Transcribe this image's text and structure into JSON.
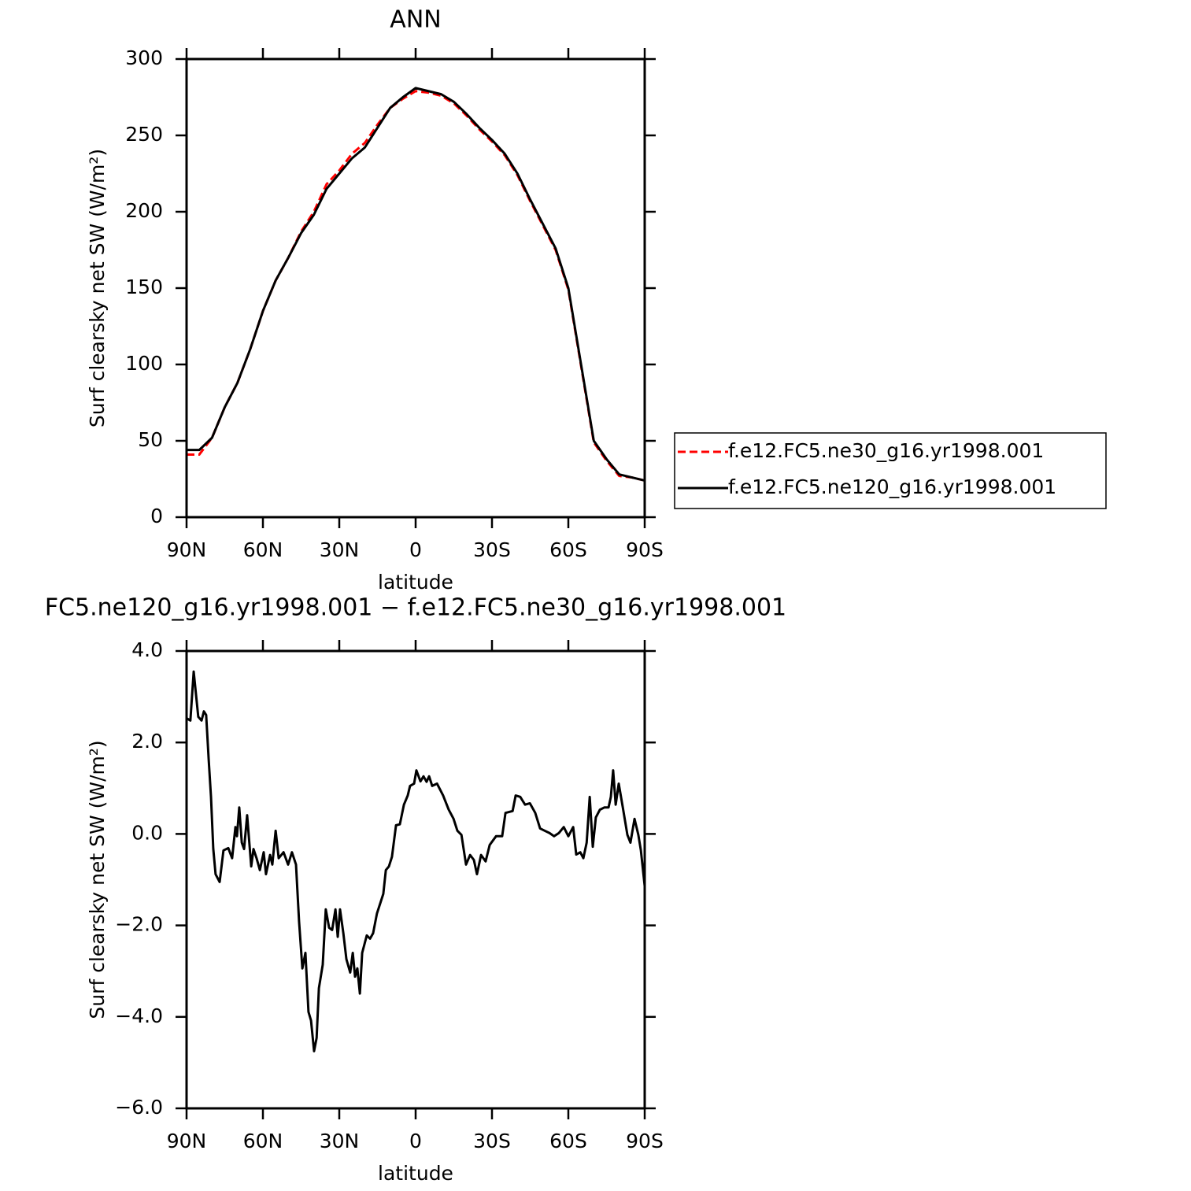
{
  "chart_data": [
    {
      "type": "line",
      "title": "ANN",
      "xlabel": "latitude",
      "ylabel": "Surf clearsky net SW (W/m²)",
      "xlim": [
        90,
        -90
      ],
      "xticks": [
        {
          "value": 90,
          "label": "90N"
        },
        {
          "value": 60,
          "label": "60N"
        },
        {
          "value": 30,
          "label": "30N"
        },
        0,
        {
          "value": -30,
          "label": "30S"
        },
        {
          "value": -60,
          "label": "60S"
        },
        {
          "value": -90,
          "label": "90S"
        }
      ],
      "ylim": [
        0,
        300
      ],
      "yticks": [
        0,
        50,
        100,
        150,
        200,
        250,
        300
      ],
      "legend": "right",
      "x": [
        90,
        85,
        80,
        75,
        70,
        65,
        60,
        55,
        50,
        45,
        40,
        35,
        30,
        25,
        20,
        15,
        10,
        5,
        0,
        -5,
        -10,
        -15,
        -20,
        -25,
        -30,
        -35,
        -40,
        -45,
        -50,
        -55,
        -60,
        -65,
        -70,
        -75,
        -80,
        -85,
        -90
      ],
      "series": [
        {
          "name": "f.e12.FC5.ne30_g16.yr1998.001",
          "color": "#ff0000",
          "linestyle": "dashed",
          "values": [
            41,
            41,
            52,
            72,
            88,
            110,
            135,
            155,
            170,
            187,
            200,
            218,
            227,
            238,
            245,
            257,
            268,
            274,
            279,
            278,
            276,
            271,
            263,
            254,
            246,
            237,
            224,
            207,
            191,
            175,
            149,
            99,
            49,
            37,
            27,
            26,
            24
          ]
        },
        {
          "name": "f.e12.FC5.ne120_g16.yr1998.001",
          "color": "#000000",
          "linestyle": "solid",
          "values": [
            44,
            44,
            52,
            72,
            88,
            110,
            135,
            155,
            170,
            186,
            198,
            215,
            225,
            235,
            242,
            255,
            268,
            275,
            281,
            279,
            277,
            272,
            264,
            255,
            247,
            238,
            225,
            208,
            192,
            176,
            150,
            100,
            50,
            38,
            28,
            26,
            24
          ]
        }
      ]
    },
    {
      "type": "line",
      "title": "FC5.ne120_g16.yr1998.001 − f.e12.FC5.ne30_g16.yr1998.001",
      "xlabel": "latitude",
      "ylabel": "Surf clearsky net SW (W/m²)",
      "xlim": [
        90,
        -90
      ],
      "xticks": [
        {
          "value": 90,
          "label": "90N"
        },
        {
          "value": 60,
          "label": "60N"
        },
        {
          "value": 30,
          "label": "30N"
        },
        0,
        {
          "value": -30,
          "label": "30S"
        },
        {
          "value": -60,
          "label": "60S"
        },
        {
          "value": -90,
          "label": "90S"
        }
      ],
      "ylim": [
        -6,
        4
      ],
      "yticks": [
        {
          "value": -6,
          "label": "−6.0"
        },
        {
          "value": -4,
          "label": "−4.0"
        },
        {
          "value": -2,
          "label": "−2.0"
        },
        {
          "value": 0,
          "label": "0.0"
        },
        {
          "value": 2,
          "label": "2.0"
        },
        {
          "value": 4,
          "label": "4.0"
        }
      ],
      "x": [
        90,
        88.5,
        87.2,
        85.4,
        84.1,
        83.2,
        82.3,
        81.3,
        80.4,
        79.5,
        78.6,
        77.0,
        75.5,
        73.6,
        72.1,
        70.8,
        70.2,
        69.3,
        68.3,
        67.4,
        66.2,
        64.6,
        63.7,
        62.5,
        61.2,
        59.7,
        58.8,
        57.2,
        56.3,
        55.0,
        53.8,
        51.9,
        50.1,
        48.6,
        47.0,
        45.8,
        44.5,
        43.3,
        42.1,
        41.1,
        39.9,
        38.9,
        38.0,
        36.5,
        35.3,
        34.0,
        32.8,
        31.5,
        30.6,
        29.7,
        28.4,
        27.2,
        25.7,
        24.7,
        23.8,
        22.9,
        21.9,
        21.0,
        19.2,
        17.9,
        16.7,
        15.2,
        12.7,
        11.7,
        10.5,
        9.3,
        7.7,
        6.2,
        4.6,
        3.1,
        2.2,
        0.6,
        -0.3,
        -1.9,
        -3.1,
        -4.3,
        -5.3,
        -6.5,
        -8.4,
        -10.8,
        -13.0,
        -14.9,
        -16.4,
        -18.0,
        -19.8,
        -21.4,
        -22.9,
        -24.1,
        -25.7,
        -27.5,
        -29.1,
        -31.6,
        -34.0,
        -35.3,
        -38.1,
        -39.3,
        -41.1,
        -43.0,
        -44.9,
        -47.0,
        -48.9,
        -50.7,
        -52.6,
        -54.4,
        -56.3,
        -58.2,
        -60.0,
        -61.9,
        -63.1,
        -64.7,
        -65.9,
        -67.2,
        -68.4,
        -69.6,
        -70.8,
        -72.4,
        -74.2,
        -75.8,
        -76.7,
        -77.6,
        -78.6,
        -79.8,
        -81.4,
        -83.2,
        -84.4,
        -86.0,
        -87.5,
        -88.5,
        -90
      ],
      "series": [
        {
          "color": "#000000",
          "linestyle": "solid",
          "values": [
            2.53,
            2.48,
            3.55,
            2.56,
            2.48,
            2.68,
            2.6,
            1.62,
            0.81,
            -0.33,
            -0.88,
            -1.05,
            -0.36,
            -0.31,
            -0.53,
            0.15,
            -0.05,
            0.58,
            -0.19,
            -0.33,
            0.41,
            -0.71,
            -0.33,
            -0.53,
            -0.79,
            -0.4,
            -0.88,
            -0.46,
            -0.67,
            0.07,
            -0.53,
            -0.4,
            -0.67,
            -0.4,
            -0.67,
            -1.91,
            -2.94,
            -2.6,
            -3.89,
            -4.08,
            -4.75,
            -4.46,
            -3.37,
            -2.86,
            -1.65,
            -2.05,
            -2.1,
            -1.65,
            -2.25,
            -1.65,
            -2.17,
            -2.74,
            -3.03,
            -2.6,
            -3.12,
            -2.94,
            -3.49,
            -2.6,
            -2.22,
            -2.29,
            -2.17,
            -1.74,
            -1.31,
            -0.79,
            -0.71,
            -0.5,
            0.19,
            0.21,
            0.64,
            0.84,
            1.05,
            1.1,
            1.39,
            1.15,
            1.26,
            1.14,
            1.26,
            1.05,
            1.1,
            0.84,
            0.53,
            0.33,
            0.07,
            -0.02,
            -0.67,
            -0.46,
            -0.57,
            -0.88,
            -0.46,
            -0.6,
            -0.24,
            -0.05,
            -0.05,
            0.46,
            0.5,
            0.84,
            0.81,
            0.64,
            0.67,
            0.46,
            0.12,
            0.07,
            0.02,
            -0.05,
            0.02,
            0.15,
            -0.05,
            0.15,
            -0.45,
            -0.4,
            -0.53,
            -0.19,
            0.81,
            -0.28,
            0.36,
            0.53,
            0.58,
            0.58,
            0.81,
            1.39,
            0.64,
            1.1,
            0.58,
            -0.02,
            -0.19,
            0.33,
            -0.02,
            -0.36,
            -1.14
          ]
        }
      ]
    }
  ]
}
